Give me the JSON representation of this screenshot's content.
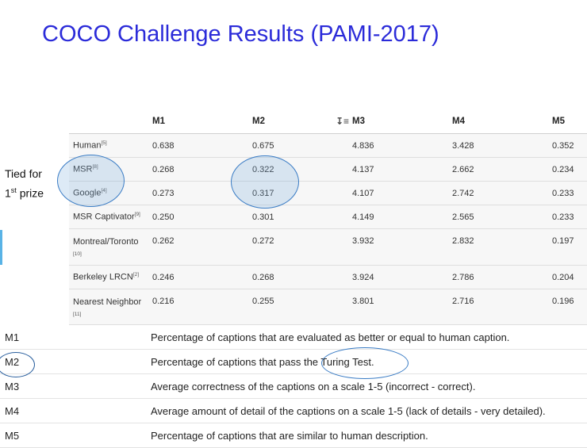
{
  "title": "COCO Challenge Results (PAMI-2017)",
  "results": {
    "headers": [
      "",
      "M1",
      "M2",
      "M3",
      "M4",
      "M5"
    ],
    "rows": [
      {
        "name": "Human",
        "ref": "[5]",
        "m1": "0.638",
        "m2": "0.675",
        "m3": "4.836",
        "m4": "3.428",
        "m5": "0.352"
      },
      {
        "name": "MSR",
        "ref": "[8]",
        "m1": "0.268",
        "m2": "0.322",
        "m3": "4.137",
        "m4": "2.662",
        "m5": "0.234"
      },
      {
        "name": "Google",
        "ref": "[4]",
        "m1": "0.273",
        "m2": "0.317",
        "m3": "4.107",
        "m4": "2.742",
        "m5": "0.233"
      },
      {
        "name": "MSR Captivator",
        "ref": "[9]",
        "m1": "0.250",
        "m2": "0.301",
        "m3": "4.149",
        "m4": "2.565",
        "m5": "0.233"
      },
      {
        "name": "Montreal/Toronto",
        "ref": "[10]",
        "m1": "0.262",
        "m2": "0.272",
        "m3": "3.932",
        "m4": "2.832",
        "m5": "0.197"
      },
      {
        "name": "Berkeley LRCN",
        "ref": "[2]",
        "m1": "0.246",
        "m2": "0.268",
        "m3": "3.924",
        "m4": "2.786",
        "m5": "0.204"
      },
      {
        "name": "Nearest Neighbor",
        "ref": "[11]",
        "m1": "0.216",
        "m2": "0.255",
        "m3": "3.801",
        "m4": "2.716",
        "m5": "0.196"
      }
    ]
  },
  "annotation": {
    "line1": "Tied for",
    "line2_num": "1",
    "line2_sup": "st",
    "line2_rest": " prize"
  },
  "definitions": [
    {
      "key": "M1",
      "text": "Percentage of captions that are evaluated as better or equal to human caption."
    },
    {
      "key": "M2",
      "text": "Percentage of captions that pass the Turing Test."
    },
    {
      "key": "M3",
      "text": "Average correctness of the captions on a scale 1-5 (incorrect - correct)."
    },
    {
      "key": "M4",
      "text": "Average amount of detail of the captions on a scale 1-5 (lack of details - very detailed)."
    },
    {
      "key": "M5",
      "text": "Percentage of captions that are similar to human description."
    }
  ],
  "colors": {
    "title": "#2b2bd9",
    "highlight": "#3a7cc5"
  },
  "icons": {
    "sort": "sort-descending-icon"
  }
}
